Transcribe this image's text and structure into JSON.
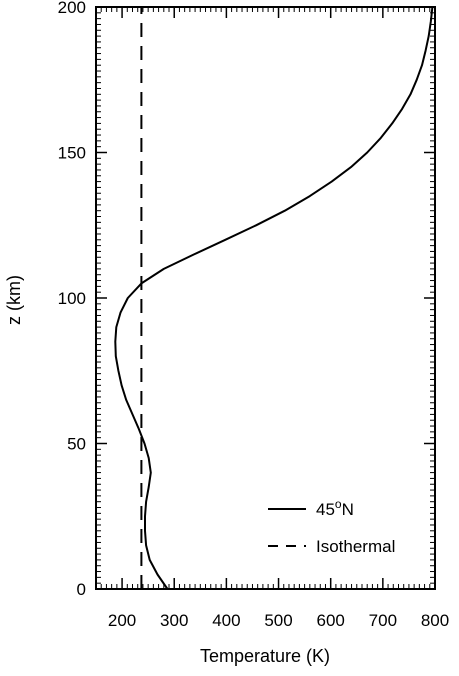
{
  "chart_data": {
    "type": "line",
    "title": "",
    "xlabel": "Temperature (K)",
    "ylabel": "z (km)",
    "xlim": [
      150,
      800
    ],
    "ylim": [
      0,
      200
    ],
    "xticks": [
      200,
      300,
      400,
      500,
      600,
      700,
      800
    ],
    "yticks": [
      0,
      50,
      100,
      150,
      200
    ],
    "grid": false,
    "legend_position": "bottom-right",
    "series": [
      {
        "name": "45°N",
        "style": "solid",
        "color": "#000000",
        "points": [
          [
            287,
            0
          ],
          [
            268,
            5
          ],
          [
            253,
            10
          ],
          [
            246,
            15
          ],
          [
            244,
            20
          ],
          [
            244,
            25
          ],
          [
            246,
            30
          ],
          [
            251,
            35
          ],
          [
            255,
            40
          ],
          [
            251,
            45
          ],
          [
            243,
            50
          ],
          [
            232,
            55
          ],
          [
            220,
            60
          ],
          [
            208,
            65
          ],
          [
            199,
            70
          ],
          [
            193,
            75
          ],
          [
            188,
            80
          ],
          [
            187,
            85
          ],
          [
            189,
            90
          ],
          [
            197,
            95
          ],
          [
            211,
            100
          ],
          [
            237,
            105
          ],
          [
            280,
            110
          ],
          [
            338,
            115
          ],
          [
            398,
            120
          ],
          [
            457,
            125
          ],
          [
            512,
            130
          ],
          [
            560,
            135
          ],
          [
            602,
            140
          ],
          [
            639,
            145
          ],
          [
            670,
            150
          ],
          [
            696,
            155
          ],
          [
            718,
            160
          ],
          [
            737,
            165
          ],
          [
            753,
            170
          ],
          [
            765,
            175
          ],
          [
            775,
            180
          ],
          [
            782,
            185
          ],
          [
            788,
            190
          ],
          [
            792,
            195
          ],
          [
            795,
            200
          ]
        ]
      },
      {
        "name": "Isothermal",
        "style": "dashed",
        "color": "#000000",
        "points": [
          [
            237,
            0
          ],
          [
            237,
            200
          ]
        ]
      }
    ]
  }
}
